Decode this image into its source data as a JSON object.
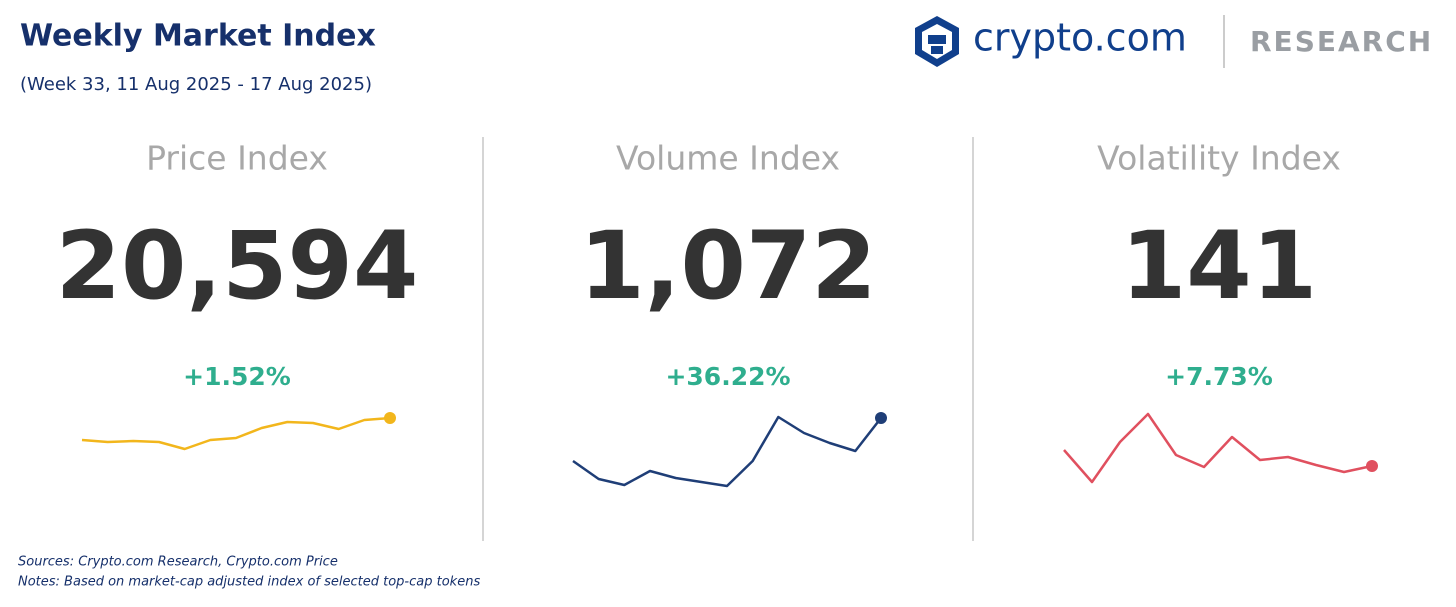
{
  "header": {
    "title": "Weekly Market Index",
    "subtitle": "(Week 33, 11 Aug 2025 - 17 Aug 2025)",
    "brand": "crypto.com",
    "section": "RESEARCH"
  },
  "chart_data": [
    {
      "type": "line",
      "title": "Price Index",
      "index_value": "20,594",
      "change": "+1.52%",
      "color": "#f2b61c",
      "values": [
        160,
        158,
        159,
        158,
        151,
        160,
        162,
        172,
        178,
        177,
        171,
        180,
        182
      ]
    },
    {
      "type": "line",
      "title": "Volume Index",
      "index_value": "1,072",
      "change": "+36.22%",
      "color": "#1f3e77",
      "values": [
        139,
        121,
        115,
        129,
        122,
        118,
        114,
        139,
        183,
        167,
        157,
        149,
        182
      ]
    },
    {
      "type": "line",
      "title": "Volatility Index",
      "index_value": "141",
      "change": "+7.73%",
      "color": "#e0505f",
      "values": [
        150,
        118,
        158,
        186,
        145,
        133,
        163,
        140,
        143,
        135,
        128,
        134
      ]
    }
  ],
  "footer": {
    "sources": "Sources: Crypto.com Research,  Crypto.com Price",
    "notes": "Notes: Based on market-cap adjusted index of selected top-cap tokens"
  }
}
